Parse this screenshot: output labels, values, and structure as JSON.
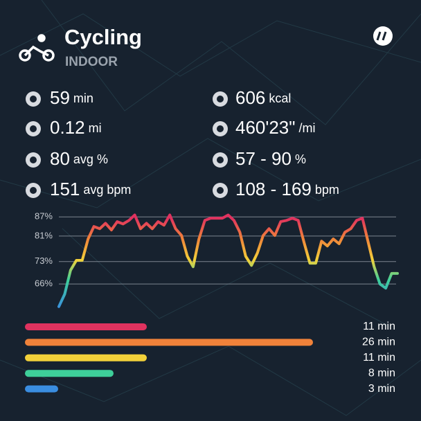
{
  "header": {
    "title": "Cycling",
    "subtitle": "INDOOR"
  },
  "stats": [
    {
      "value": "59",
      "unit": "min"
    },
    {
      "value": "0.12",
      "unit": "mi"
    },
    {
      "value": "80",
      "unit": "avg %"
    },
    {
      "value": "151",
      "unit": "avg bpm"
    },
    {
      "value": "606",
      "unit": "kcal"
    },
    {
      "value": "460'23\"",
      "unit": "/mi"
    },
    {
      "value": "57 - 90",
      "unit": "%"
    },
    {
      "value": "108 - 169",
      "unit": "bpm"
    }
  ],
  "chart_data": {
    "type": "line",
    "values": [
      58.9,
      62.8,
      70.3,
      73.4,
      73.4,
      80.1,
      84,
      83.3,
      85,
      82.9,
      85.5,
      84.8,
      85.9,
      87.6,
      83.3,
      85,
      83.3,
      85.5,
      84.4,
      87.6,
      83.3,
      81.2,
      74.7,
      71.4,
      80.1,
      85.9,
      86.6,
      86.6,
      86.6,
      87.6,
      85.9,
      82.2,
      74.7,
      71.8,
      75.7,
      81.2,
      83.3,
      81.2,
      85.5,
      85.9,
      86.6,
      85.9,
      79,
      72.5,
      72.5,
      79.4,
      77.9,
      80.1,
      78.6,
      82.2,
      83.3,
      85.9,
      86.6,
      79,
      71.4,
      66,
      64.7,
      69.3,
      69.3
    ],
    "ylim": [
      58,
      89
    ],
    "yticks": [
      {
        "value": 87,
        "label": "87%"
      },
      {
        "value": 81,
        "label": "81%"
      },
      {
        "value": 73,
        "label": "73%"
      },
      {
        "value": 66,
        "label": "66%"
      }
    ],
    "grid": true
  },
  "zones": {
    "type": "bar",
    "values": [
      11,
      26,
      11,
      8,
      3
    ],
    "value_labels": [
      "11 min",
      "26 min",
      "11 min",
      "8 min",
      "3 min"
    ],
    "colors": [
      "#e0325f",
      "#f0823a",
      "#f2d13a",
      "#3ecf9a",
      "#3a8de0"
    ]
  }
}
